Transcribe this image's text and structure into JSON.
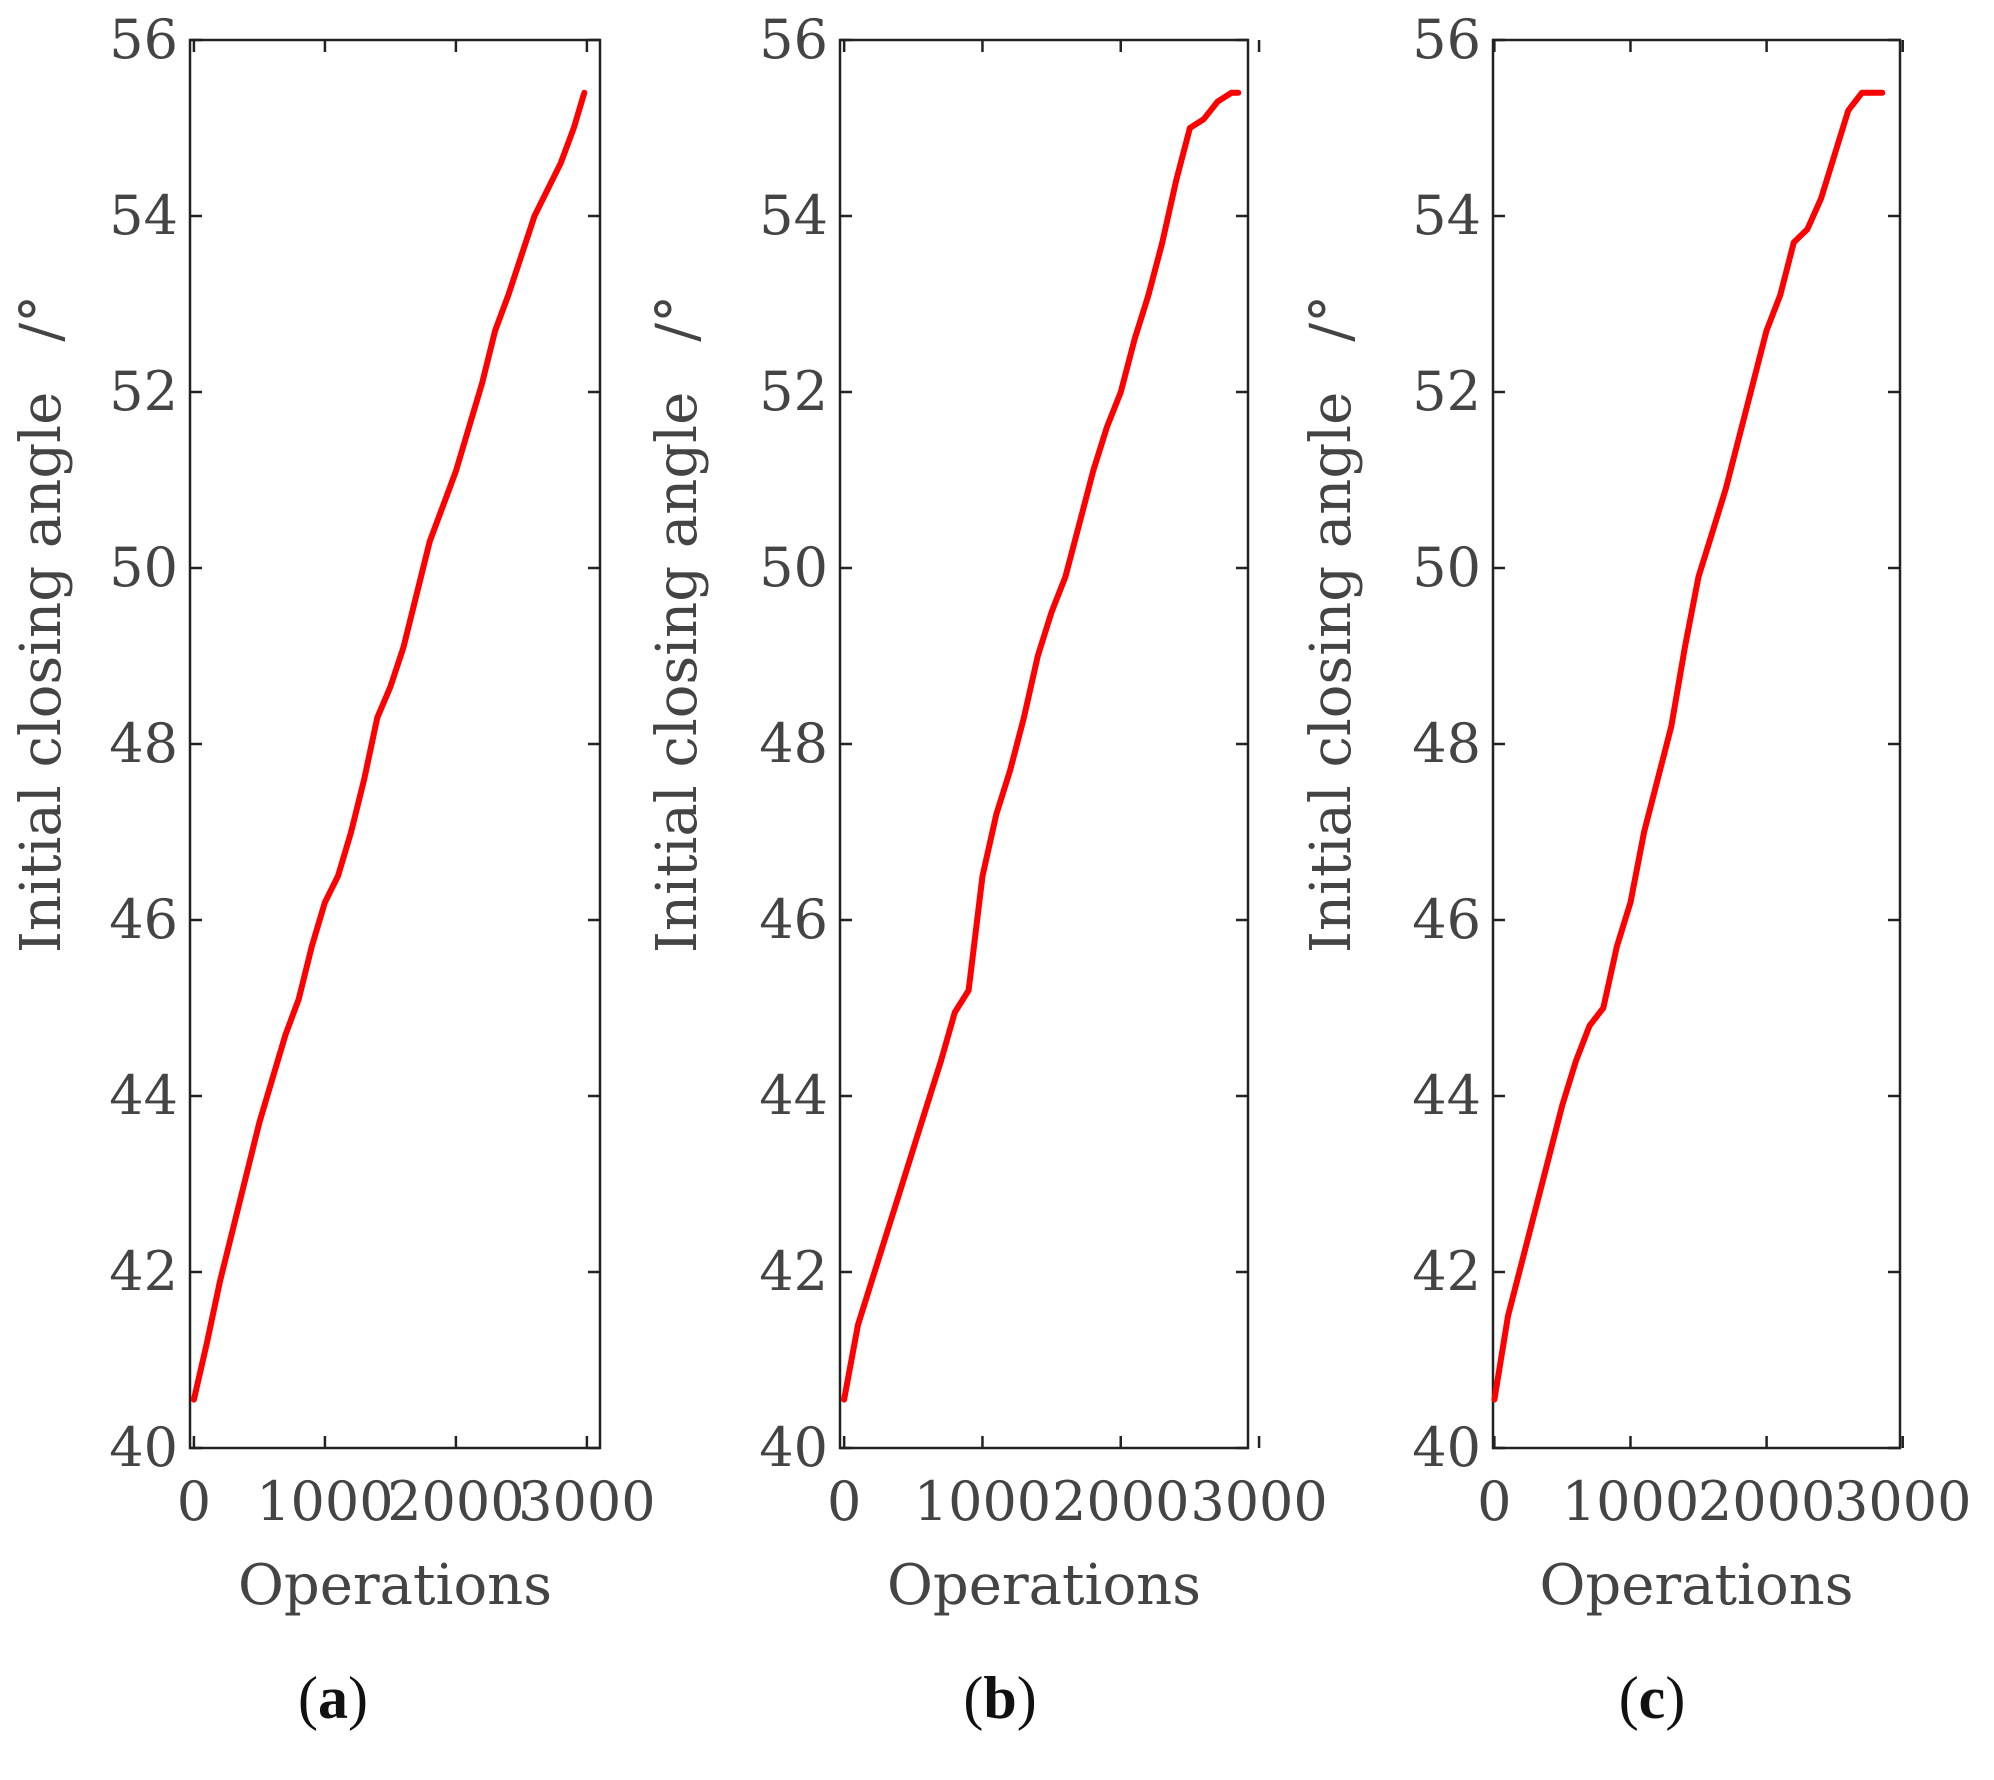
{
  "chart_data": [
    {
      "type": "line",
      "panel": "a",
      "panel_label": "(a)",
      "xlabel": "Operations",
      "ylabel": "Initial closing angle",
      "ylabel_unit": "/°",
      "xlim": [
        -30,
        3100
      ],
      "ylim": [
        40,
        56
      ],
      "xticks": [
        0,
        1000,
        2000,
        3000
      ],
      "xtick_labels": [
        "0",
        "1000",
        "2000",
        "3000"
      ],
      "yticks": [
        40,
        42,
        44,
        46,
        48,
        50,
        52,
        54,
        56
      ],
      "ytick_labels": [
        "40",
        "42",
        "44",
        "46",
        "48",
        "50",
        "52",
        "54",
        "56"
      ],
      "grid": false,
      "series": [
        {
          "name": "Initial closing angle",
          "color": "#ff0000",
          "x": [
            0,
            100,
            200,
            300,
            400,
            500,
            600,
            700,
            800,
            900,
            1000,
            1100,
            1200,
            1300,
            1400,
            1500,
            1600,
            1700,
            1800,
            1900,
            2000,
            2100,
            2200,
            2300,
            2400,
            2500,
            2600,
            2700,
            2800,
            2900,
            2980
          ],
          "y": [
            40.55,
            41.2,
            41.9,
            42.5,
            43.1,
            43.7,
            44.2,
            44.7,
            45.1,
            45.7,
            46.2,
            46.5,
            47.0,
            47.6,
            48.3,
            48.65,
            49.1,
            49.7,
            50.3,
            50.7,
            51.1,
            51.6,
            52.1,
            52.7,
            53.1,
            53.55,
            54.0,
            54.3,
            54.6,
            55.0,
            55.4
          ]
        }
      ]
    },
    {
      "type": "line",
      "panel": "b",
      "panel_label": "(b)",
      "xlabel": "Operations",
      "ylabel": "Initial closing angle",
      "ylabel_unit": "/°",
      "xlim": [
        -30,
        2920
      ],
      "ylim": [
        40,
        56
      ],
      "xticks": [
        0,
        1000,
        2000,
        3000
      ],
      "xtick_labels": [
        "0",
        "1000",
        "2000",
        "3000"
      ],
      "yticks": [
        40,
        42,
        44,
        46,
        48,
        50,
        52,
        54,
        56
      ],
      "ytick_labels": [
        "40",
        "42",
        "44",
        "46",
        "48",
        "50",
        "52",
        "54",
        "56"
      ],
      "grid": false,
      "series": [
        {
          "name": "Initial closing angle",
          "color": "#ff0000",
          "x": [
            0,
            100,
            200,
            300,
            400,
            500,
            600,
            700,
            800,
            900,
            1000,
            1100,
            1200,
            1300,
            1400,
            1500,
            1600,
            1700,
            1800,
            1900,
            2000,
            2100,
            2200,
            2300,
            2400,
            2500,
            2600,
            2700,
            2800,
            2850
          ],
          "y": [
            40.55,
            41.4,
            41.9,
            42.4,
            42.9,
            43.4,
            43.9,
            44.4,
            44.95,
            45.2,
            46.5,
            47.2,
            47.7,
            48.3,
            49.0,
            49.5,
            49.9,
            50.5,
            51.1,
            51.6,
            52.0,
            52.6,
            53.1,
            53.7,
            54.4,
            55.0,
            55.1,
            55.3,
            55.4,
            55.4
          ]
        }
      ]
    },
    {
      "type": "line",
      "panel": "c",
      "panel_label": "(c)",
      "xlabel": "Operations",
      "ylabel": "Initial closing angle",
      "ylabel_unit": "/°",
      "xlim": [
        -10,
        2980
      ],
      "ylim": [
        40,
        56
      ],
      "xticks": [
        0,
        1000,
        2000,
        3000
      ],
      "xtick_labels": [
        "0",
        "1000",
        "2000",
        "3000"
      ],
      "yticks": [
        40,
        42,
        44,
        46,
        48,
        50,
        52,
        54,
        56
      ],
      "ytick_labels": [
        "40",
        "42",
        "44",
        "46",
        "48",
        "50",
        "52",
        "54",
        "56"
      ],
      "grid": false,
      "series": [
        {
          "name": "Initial closing angle",
          "color": "#ff0000",
          "x": [
            0,
            100,
            200,
            300,
            400,
            500,
            600,
            700,
            800,
            900,
            1000,
            1100,
            1200,
            1300,
            1400,
            1500,
            1600,
            1700,
            1800,
            1900,
            2000,
            2100,
            2200,
            2300,
            2400,
            2500,
            2600,
            2700,
            2800,
            2850
          ],
          "y": [
            40.55,
            41.5,
            42.1,
            42.7,
            43.3,
            43.9,
            44.4,
            44.8,
            45.0,
            45.7,
            46.2,
            47.0,
            47.6,
            48.2,
            49.1,
            49.9,
            50.4,
            50.9,
            51.5,
            52.1,
            52.7,
            53.1,
            53.7,
            53.85,
            54.2,
            54.7,
            55.2,
            55.4,
            55.4,
            55.4
          ]
        }
      ]
    }
  ]
}
